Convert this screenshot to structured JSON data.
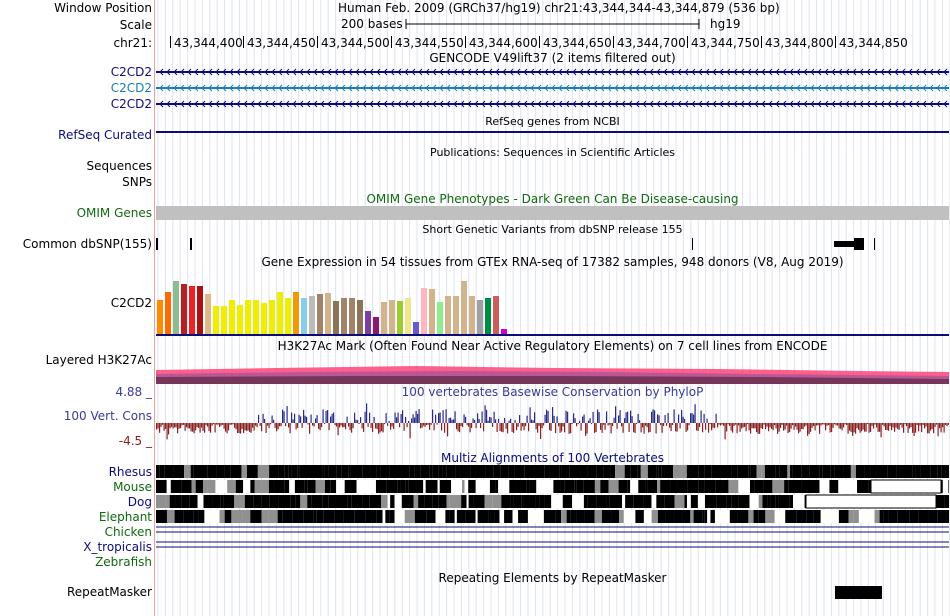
{
  "header": {
    "window_position_label": "Window Position",
    "scale_label": "Scale",
    "chrom_label": "chr21:",
    "assembly_title": "Human Feb. 2009 (GRCh37/hg19)   chr21:43,344,344-43,344,879 (536 bp)",
    "scale_text": "200 bases",
    "db_name": "hg19",
    "ruler_ticks": [
      "43,344,400",
      "43,344,450",
      "43,344,500",
      "43,344,550",
      "43,344,600",
      "43,344,650",
      "43,344,700",
      "43,344,750",
      "43,344,800",
      "43,344,850"
    ]
  },
  "tracks": {
    "gencode": {
      "title": "GENCODE V49lift37 (2 items filtered out)",
      "items": [
        "C2CD2",
        "C2CD2",
        "C2CD2"
      ],
      "colors": [
        "#0c0c78",
        "#1a7fb5",
        "#0c0c78"
      ]
    },
    "refseq": {
      "label": "RefSeq Curated",
      "title": "RefSeq genes from NCBI"
    },
    "publications": {
      "title": "Publications: Sequences in Scientific Articles",
      "label_sequences": "Sequences",
      "label_snps": "SNPs"
    },
    "omim": {
      "label": "OMIM Genes",
      "title": "OMIM Gene Phenotypes - Dark Green Can Be Disease-causing",
      "color": "#106a10"
    },
    "dbsnp": {
      "label": "Common dbSNP(155)",
      "title": "Short Genetic Variants from dbSNP release 155"
    },
    "gtex": {
      "label": "C2CD2",
      "title": "Gene Expression in 54 tissues from GTEx RNA-seq of 17382 samples, 948 donors (V8, Aug 2019)",
      "bars": [
        {
          "v": 0.52,
          "c": "#ff8c00"
        },
        {
          "v": 0.63,
          "c": "#ff6a00"
        },
        {
          "v": 0.8,
          "c": "#8fbc8f"
        },
        {
          "v": 0.75,
          "c": "#b22222"
        },
        {
          "v": 0.73,
          "c": "#ee2222"
        },
        {
          "v": 0.73,
          "c": "#aa1111"
        },
        {
          "v": 0.6,
          "c": "#deb887"
        },
        {
          "v": 0.42,
          "c": "#eeee00"
        },
        {
          "v": 0.42,
          "c": "#eeee00"
        },
        {
          "v": 0.52,
          "c": "#eeee00"
        },
        {
          "v": 0.44,
          "c": "#eeee00"
        },
        {
          "v": 0.52,
          "c": "#eeee00"
        },
        {
          "v": 0.52,
          "c": "#eeee00"
        },
        {
          "v": 0.47,
          "c": "#eeee00"
        },
        {
          "v": 0.52,
          "c": "#eeee00"
        },
        {
          "v": 0.63,
          "c": "#eeee00"
        },
        {
          "v": 0.55,
          "c": "#eeee00"
        },
        {
          "v": 0.63,
          "c": "#ee9a00"
        },
        {
          "v": 0.55,
          "c": "#87ceeb"
        },
        {
          "v": 0.58,
          "c": "#bbbbbb"
        },
        {
          "v": 0.6,
          "c": "#a0836a"
        },
        {
          "v": 0.62,
          "c": "#d2b48c"
        },
        {
          "v": 0.5,
          "c": "#8b7355"
        },
        {
          "v": 0.55,
          "c": "#a0836a"
        },
        {
          "v": 0.55,
          "c": "#a0836a"
        },
        {
          "v": 0.52,
          "c": "#8b7355"
        },
        {
          "v": 0.35,
          "c": "#7b3fa0"
        },
        {
          "v": 0.25,
          "c": "#8b1a6b"
        },
        {
          "v": 0.48,
          "c": "#d2b48c"
        },
        {
          "v": 0.52,
          "c": "#d2b48c"
        },
        {
          "v": 0.5,
          "c": "#9acd32"
        },
        {
          "v": 0.55,
          "c": "#f0e68c"
        },
        {
          "v": 0.18,
          "c": "#6a5acd"
        },
        {
          "v": 0.7,
          "c": "#ffb6c1"
        },
        {
          "v": 0.68,
          "c": "#d2b48c"
        },
        {
          "v": 0.48,
          "c": "#90ee90"
        },
        {
          "v": 0.58,
          "c": "#d2b48c"
        },
        {
          "v": 0.58,
          "c": "#d2b48c"
        },
        {
          "v": 0.8,
          "c": "#d2b48c"
        },
        {
          "v": 0.57,
          "c": "#d2b48c"
        },
        {
          "v": 0.52,
          "c": "#a0a0a0"
        },
        {
          "v": 0.55,
          "c": "#008b45"
        },
        {
          "v": 0.58,
          "c": "#cd5c5c"
        },
        {
          "v": 0.08,
          "c": "#cc00cc"
        }
      ]
    },
    "h3k27ac": {
      "label": "Layered H3K27Ac",
      "title": "H3K27Ac Mark (Often Found Near Active Regulatory Elements) on 7 cell lines from ENCODE"
    },
    "phylop": {
      "label": "100 Vert. Cons",
      "title": "100 vertebrates Basewise Conservation by PhyloP",
      "max_label": "4.88 _",
      "min_label": "-4.5 _"
    },
    "multiz": {
      "title": "Multiz Alignments of 100 Vertebrates",
      "species": [
        {
          "name": "Rhesus",
          "color": "#0c0c78"
        },
        {
          "name": "Mouse",
          "color": "#106a10"
        },
        {
          "name": "Dog",
          "color": "#0c0c78"
        },
        {
          "name": "Elephant",
          "color": "#106a10"
        },
        {
          "name": "Chicken",
          "color": "#106a10"
        },
        {
          "name": "X_tropicalis",
          "color": "#0c0c78"
        },
        {
          "name": "Zebrafish",
          "color": "#106a10"
        }
      ]
    },
    "repeatmasker": {
      "label": "RepeatMasker",
      "title": "Repeating Elements by RepeatMasker"
    }
  }
}
